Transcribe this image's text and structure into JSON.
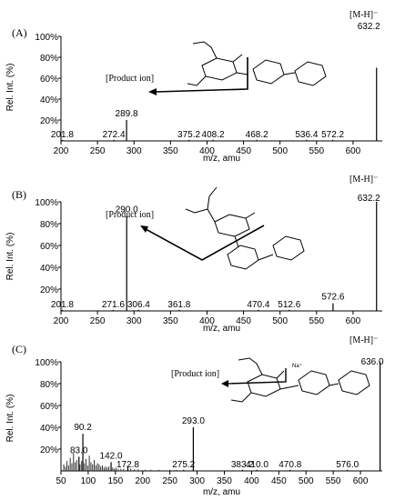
{
  "chart_data": [
    {
      "type": "bar",
      "panel_label": "(A)",
      "xlabel": "m/z, amu",
      "ylabel": "Rel. Int. (%)",
      "xlim": [
        200,
        640
      ],
      "ylim": [
        0,
        100
      ],
      "x_ticks": [
        "200",
        "250",
        "300",
        "350",
        "400",
        "450",
        "500",
        "550",
        "600"
      ],
      "y_ticks": [
        "20%",
        "40%",
        "60%",
        "80%",
        "100%"
      ],
      "precursor_label": "[M-H]⁻",
      "product_ion_label": "[Product ion]",
      "peaks": [
        {
          "mz": 201.8,
          "intensity": 1,
          "label": "201.8"
        },
        {
          "mz": 272.4,
          "intensity": 1,
          "label": "272.4"
        },
        {
          "mz": 289.8,
          "intensity": 20,
          "label": "289.8"
        },
        {
          "mz": 375.2,
          "intensity": 1,
          "label": "375.2"
        },
        {
          "mz": 408.2,
          "intensity": 1,
          "label": "408.2"
        },
        {
          "mz": 468.2,
          "intensity": 1,
          "label": "468.2"
        },
        {
          "mz": 536.4,
          "intensity": 1,
          "label": "536.4"
        },
        {
          "mz": 572.2,
          "intensity": 1,
          "label": "572.2"
        },
        {
          "mz": 632.2,
          "intensity": 70,
          "label": "632.2"
        }
      ],
      "product_ion_mz": 289.8
    },
    {
      "type": "bar",
      "panel_label": "(B)",
      "xlabel": "m/z, amu",
      "ylabel": "Rel. Int. (%)",
      "xlim": [
        200,
        640
      ],
      "ylim": [
        0,
        100
      ],
      "x_ticks": [
        "200",
        "250",
        "300",
        "350",
        "400",
        "450",
        "500",
        "550",
        "600"
      ],
      "y_ticks": [
        "20%",
        "40%",
        "60%",
        "80%",
        "100%"
      ],
      "precursor_label": "[M-H]⁻",
      "product_ion_label": "[Product ion]",
      "peaks": [
        {
          "mz": 201.8,
          "intensity": 1,
          "label": "201.8"
        },
        {
          "mz": 271.6,
          "intensity": 1,
          "label": "271.6"
        },
        {
          "mz": 290.0,
          "intensity": 87,
          "label": "290.0"
        },
        {
          "mz": 306.4,
          "intensity": 1,
          "label": "306.4"
        },
        {
          "mz": 361.8,
          "intensity": 1,
          "label": "361.8"
        },
        {
          "mz": 470.4,
          "intensity": 1,
          "label": "470.4"
        },
        {
          "mz": 512.6,
          "intensity": 1,
          "label": "512.6"
        },
        {
          "mz": 572.6,
          "intensity": 7,
          "label": "572.6"
        },
        {
          "mz": 632.2,
          "intensity": 100,
          "label": "632.2"
        }
      ],
      "product_ion_mz": 290.0
    },
    {
      "type": "bar",
      "panel_label": "(C)",
      "xlabel": "m/z, amu",
      "ylabel": "Rel. Int. (%)",
      "xlim": [
        50,
        640
      ],
      "ylim": [
        0,
        100
      ],
      "x_ticks": [
        "50",
        "100",
        "150",
        "200",
        "250",
        "300",
        "350",
        "400",
        "450",
        "500",
        "550",
        "600"
      ],
      "y_ticks": [
        "20%",
        "40%",
        "60%",
        "80%",
        "100%"
      ],
      "precursor_label": "[M-H]⁻",
      "product_ion_label": "[Product ion]",
      "peaks": [
        {
          "mz": 83.0,
          "intensity": 13,
          "label": "83.0"
        },
        {
          "mz": 90.2,
          "intensity": 34,
          "label": "90.2"
        },
        {
          "mz": 142.0,
          "intensity": 8,
          "label": "142.0"
        },
        {
          "mz": 172.8,
          "intensity": 4,
          "label": "172.8"
        },
        {
          "mz": 275.2,
          "intensity": 1,
          "label": "275.2"
        },
        {
          "mz": 293.0,
          "intensity": 40,
          "label": "293.0"
        },
        {
          "mz": 383.2,
          "intensity": 1,
          "label": "383.2"
        },
        {
          "mz": 410.0,
          "intensity": 1,
          "label": "410.0"
        },
        {
          "mz": 470.8,
          "intensity": 1,
          "label": "470.8"
        },
        {
          "mz": 576.0,
          "intensity": 1,
          "label": "576.0"
        },
        {
          "mz": 636.0,
          "intensity": 100,
          "label": "636.0"
        }
      ],
      "minor_peaks": [
        [
          55,
          6
        ],
        [
          58,
          4
        ],
        [
          61,
          9
        ],
        [
          64,
          5
        ],
        [
          67,
          12
        ],
        [
          70,
          7
        ],
        [
          73,
          16
        ],
        [
          76,
          8
        ],
        [
          79,
          10
        ],
        [
          85,
          6
        ],
        [
          88,
          9
        ],
        [
          93,
          7
        ],
        [
          96,
          11
        ],
        [
          99,
          5
        ],
        [
          102,
          14
        ],
        [
          105,
          8
        ],
        [
          108,
          6
        ],
        [
          111,
          10
        ],
        [
          114,
          5
        ],
        [
          117,
          7
        ],
        [
          120,
          6
        ],
        [
          123,
          4
        ],
        [
          126,
          5
        ],
        [
          129,
          3
        ],
        [
          132,
          4
        ],
        [
          135,
          3
        ],
        [
          138,
          4
        ],
        [
          145,
          3
        ],
        [
          148,
          2
        ],
        [
          151,
          3
        ],
        [
          155,
          2
        ],
        [
          160,
          2
        ],
        [
          165,
          2
        ],
        [
          178,
          2
        ],
        [
          185,
          1.5
        ],
        [
          192,
          1.5
        ],
        [
          205,
          1
        ],
        [
          215,
          1
        ],
        [
          230,
          1
        ],
        [
          250,
          1
        ],
        [
          262,
          1
        ]
      ],
      "product_ion_mz": 293.0,
      "structure_annotation": "Na⁺"
    }
  ]
}
